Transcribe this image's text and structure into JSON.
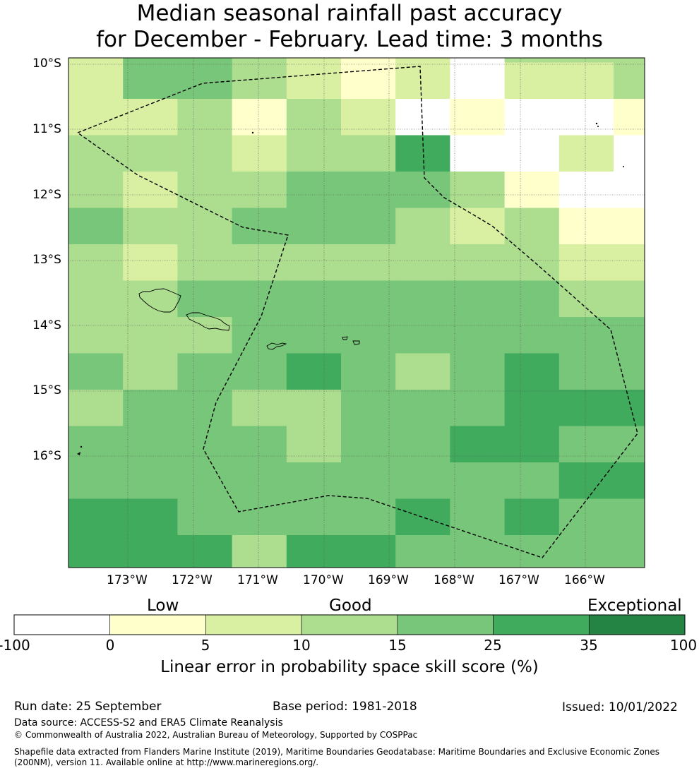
{
  "title": {
    "line1": "Median seasonal rainfall past accuracy",
    "line2": "for December - February. Lead time: 3 months"
  },
  "map": {
    "lat_labels": [
      "10°S",
      "11°S",
      "12°S",
      "13°S",
      "14°S",
      "15°S",
      "16°S"
    ],
    "lon_labels": [
      "173°W",
      "172°W",
      "171°W",
      "170°W",
      "169°W",
      "168°W",
      "167°W",
      "166°W"
    ],
    "bin_colors": [
      "#ffffff",
      "#ffffcc",
      "#d9f0a3",
      "#addd8e",
      "#78c679",
      "#41ab5d",
      "#238443"
    ],
    "grid": [
      [
        2,
        4,
        4,
        3,
        2,
        1,
        2,
        0,
        3,
        3,
        3
      ],
      [
        2,
        4,
        4,
        3,
        2,
        1,
        2,
        0,
        2,
        2,
        3
      ],
      [
        2,
        2,
        3,
        1,
        3,
        2,
        0,
        1,
        0,
        0,
        1
      ],
      [
        3,
        3,
        3,
        2,
        3,
        3,
        5,
        0,
        0,
        2,
        0
      ],
      [
        3,
        2,
        3,
        3,
        4,
        4,
        4,
        3,
        1,
        0,
        0
      ],
      [
        4,
        3,
        3,
        4,
        4,
        4,
        3,
        2,
        3,
        1,
        1
      ],
      [
        3,
        2,
        3,
        3,
        3,
        3,
        3,
        3,
        3,
        2,
        2
      ],
      [
        3,
        3,
        4,
        4,
        4,
        4,
        4,
        4,
        4,
        3,
        3
      ],
      [
        3,
        3,
        3,
        4,
        4,
        4,
        4,
        4,
        4,
        4,
        4
      ],
      [
        4,
        3,
        4,
        4,
        5,
        4,
        3,
        4,
        5,
        4,
        4
      ],
      [
        3,
        4,
        4,
        3,
        3,
        4,
        4,
        4,
        5,
        5,
        5
      ],
      [
        4,
        4,
        4,
        4,
        3,
        4,
        4,
        5,
        5,
        4,
        4
      ],
      [
        4,
        4,
        4,
        4,
        4,
        4,
        4,
        4,
        4,
        5,
        5
      ],
      [
        5,
        5,
        4,
        4,
        4,
        4,
        5,
        4,
        5,
        4,
        4
      ],
      [
        5,
        5,
        5,
        3,
        5,
        5,
        4,
        4,
        4,
        4,
        4
      ]
    ]
  },
  "colorbar": {
    "categories": [
      "Low",
      "Good",
      "Exceptional"
    ],
    "ticks": [
      "-100",
      "0",
      "5",
      "10",
      "15",
      "25",
      "35",
      "100"
    ],
    "xlabel": "Linear error in probability space skill score (%)"
  },
  "footer": {
    "run_date": "Run date: 25 September",
    "base_period": "Base period: 1981-2018",
    "issued": "Issued: 10/01/2022",
    "data_source": "Data source: ACCESS-S2 and ERA5 Climate Reanalysis",
    "copyright": "© Commonwealth of Australia 2022, Australian Bureau of Meteorology, Supported by COSPPac",
    "shapefile_line1": "Shapefile data extracted from Flanders Marine Institute (2019), Maritime Boundaries Geodatabase: Maritime Boundaries and Exclusive Economic Zones",
    "shapefile_line2": "(200NM), version 11. Available online at http://www.marineregions.org/."
  }
}
